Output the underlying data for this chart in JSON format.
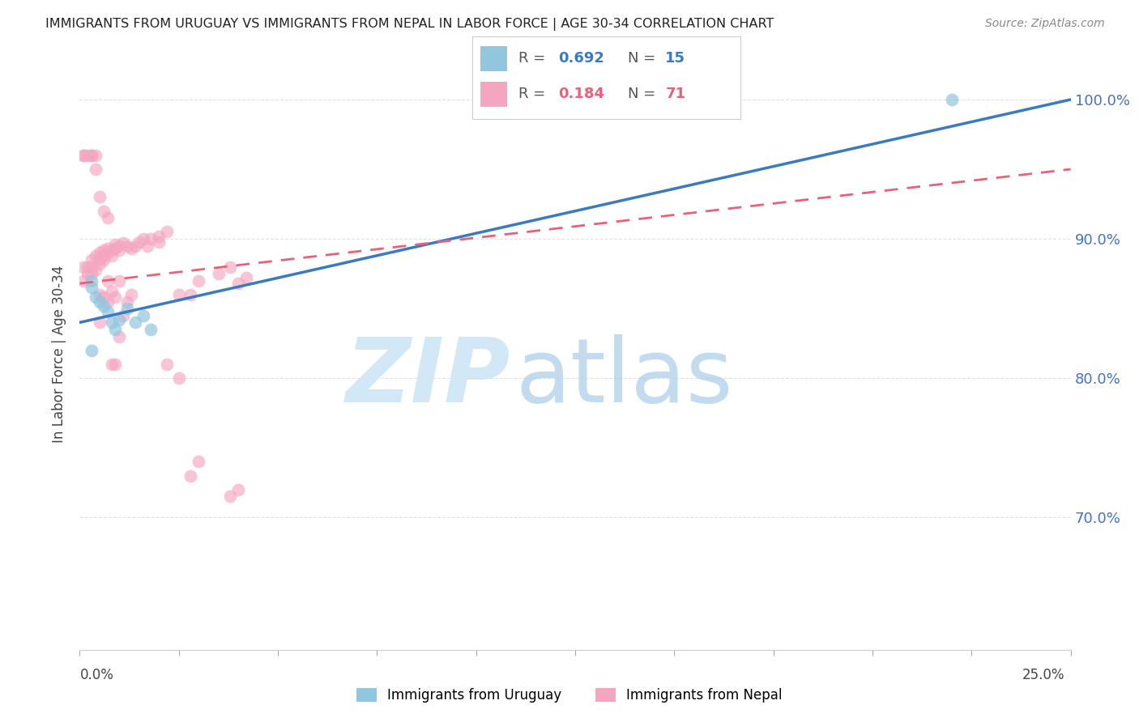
{
  "title": "IMMIGRANTS FROM URUGUAY VS IMMIGRANTS FROM NEPAL IN LABOR FORCE | AGE 30-34 CORRELATION CHART",
  "source": "Source: ZipAtlas.com",
  "ylabel": "In Labor Force | Age 30-34",
  "y_ticks": [
    0.7,
    0.8,
    0.9,
    1.0
  ],
  "y_tick_labels": [
    "70.0%",
    "80.0%",
    "90.0%",
    "100.0%"
  ],
  "x_lim": [
    0.0,
    0.25
  ],
  "y_lim": [
    0.605,
    1.03
  ],
  "legend_r_uruguay": "0.692",
  "legend_n_uruguay": "15",
  "legend_r_nepal": "0.184",
  "legend_n_nepal": "71",
  "color_uruguay": "#92c5de",
  "color_nepal": "#f4a6c0",
  "color_trendline_uruguay": "#3a7bbf",
  "color_trendline_nepal": "#e8607a",
  "uruguay_x": [
    0.003,
    0.003,
    0.004,
    0.005,
    0.006,
    0.007,
    0.008,
    0.009,
    0.01,
    0.012,
    0.014,
    0.016,
    0.018,
    0.22,
    0.003
  ],
  "uruguay_y": [
    0.87,
    0.865,
    0.858,
    0.855,
    0.852,
    0.848,
    0.84,
    0.835,
    0.842,
    0.85,
    0.84,
    0.845,
    0.835,
    1.0,
    0.82
  ],
  "nepal_x": [
    0.001,
    0.001,
    0.002,
    0.002,
    0.003,
    0.003,
    0.003,
    0.004,
    0.004,
    0.005,
    0.005,
    0.005,
    0.006,
    0.006,
    0.006,
    0.007,
    0.007,
    0.008,
    0.008,
    0.009,
    0.009,
    0.01,
    0.01,
    0.011,
    0.012,
    0.013,
    0.014,
    0.015,
    0.016,
    0.017,
    0.018,
    0.02,
    0.02,
    0.022,
    0.025,
    0.028,
    0.03,
    0.035,
    0.038,
    0.04,
    0.042,
    0.001,
    0.001,
    0.002,
    0.003,
    0.003,
    0.004,
    0.004,
    0.005,
    0.006,
    0.007,
    0.008,
    0.009,
    0.01,
    0.011,
    0.012,
    0.013,
    0.005,
    0.005,
    0.006,
    0.007,
    0.007,
    0.008,
    0.009,
    0.01,
    0.022,
    0.025,
    0.028,
    0.03,
    0.038,
    0.04
  ],
  "nepal_y": [
    0.87,
    0.88,
    0.875,
    0.88,
    0.88,
    0.875,
    0.885,
    0.878,
    0.888,
    0.882,
    0.886,
    0.89,
    0.885,
    0.888,
    0.892,
    0.89,
    0.893,
    0.888,
    0.892,
    0.893,
    0.896,
    0.895,
    0.892,
    0.897,
    0.895,
    0.893,
    0.895,
    0.898,
    0.9,
    0.895,
    0.9,
    0.898,
    0.902,
    0.905,
    0.86,
    0.86,
    0.87,
    0.875,
    0.88,
    0.868,
    0.872,
    0.96,
    0.96,
    0.96,
    0.96,
    0.96,
    0.96,
    0.95,
    0.93,
    0.92,
    0.915,
    0.81,
    0.81,
    0.83,
    0.845,
    0.855,
    0.86,
    0.84,
    0.86,
    0.858,
    0.855,
    0.87,
    0.862,
    0.858,
    0.87,
    0.81,
    0.8,
    0.73,
    0.74,
    0.715,
    0.72
  ],
  "trendline_uruguay_y0": 0.84,
  "trendline_uruguay_y1": 1.0,
  "trendline_nepal_y0": 0.868,
  "trendline_nepal_y1": 0.95,
  "grid_color": "#e0e0e0",
  "background_color": "#ffffff",
  "title_color": "#222222",
  "right_yaxis_color": "#4472c4",
  "watermark_zip_color": "#cce4f5",
  "watermark_atlas_color": "#a8cce8"
}
